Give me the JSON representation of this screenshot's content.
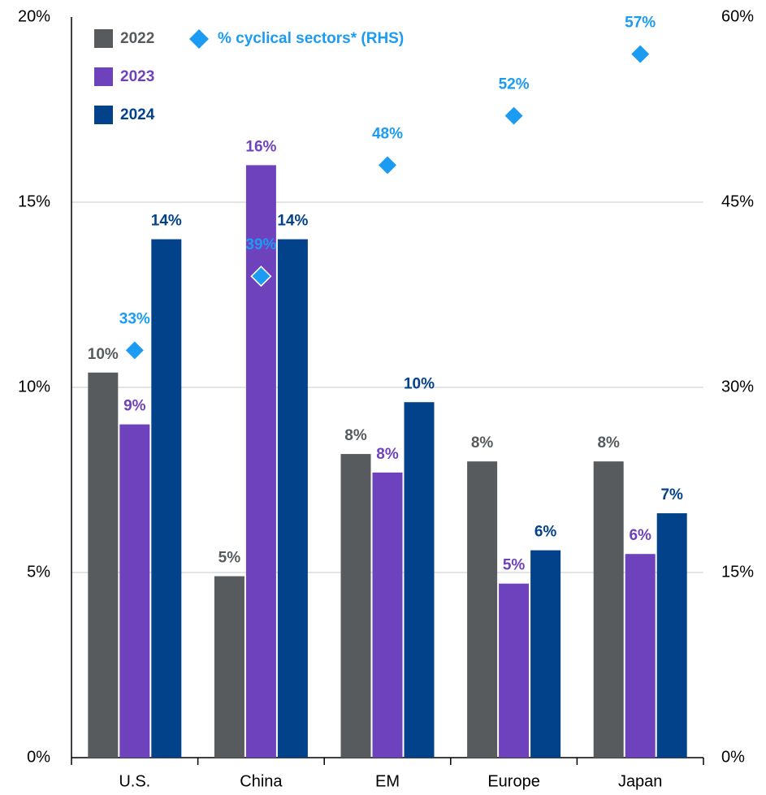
{
  "chart_data": {
    "type": "bar",
    "categories": [
      "U.S.",
      "China",
      "EM",
      "Europe",
      "Japan"
    ],
    "series": [
      {
        "name": "2022",
        "color": "#575b5e",
        "values": [
          10.4,
          4.9,
          8.2,
          8.0,
          8.0
        ],
        "value_labels": [
          "10%",
          "5%",
          "8%",
          "8%",
          "8%"
        ]
      },
      {
        "name": "2023",
        "color": "#6f42bd",
        "values": [
          9.0,
          16.0,
          7.7,
          4.7,
          5.5
        ],
        "value_labels": [
          "9%",
          "16%",
          "8%",
          "5%",
          "6%"
        ]
      },
      {
        "name": "2024",
        "color": "#02428a",
        "values": [
          14.0,
          14.0,
          9.6,
          5.6,
          6.6
        ],
        "value_labels": [
          "14%",
          "14%",
          "10%",
          "6%",
          "7%"
        ]
      },
      {
        "name": "% cyclical sectors* (RHS)",
        "type": "scatter",
        "axis": "y2",
        "color": "#1b9cf2",
        "values": [
          33,
          39,
          48,
          52,
          57
        ],
        "value_labels": [
          "33%",
          "39%",
          "48%",
          "52%",
          "57%"
        ]
      }
    ],
    "ylim": [
      0,
      20
    ],
    "yticks": [
      {
        "value": 0,
        "label": "0%"
      },
      {
        "value": 5,
        "label": "5%"
      },
      {
        "value": 10,
        "label": "10%"
      },
      {
        "value": 15,
        "label": "15%"
      },
      {
        "value": 20,
        "label": "20%"
      }
    ],
    "y2lim": [
      0,
      60
    ],
    "y2ticks": [
      {
        "value": 0,
        "label": "0%"
      },
      {
        "value": 15,
        "label": "15%"
      },
      {
        "value": 30,
        "label": "30%"
      },
      {
        "value": 45,
        "label": "45%"
      },
      {
        "value": 60,
        "label": "60%"
      }
    ],
    "grid": true,
    "legend": "upper left"
  }
}
